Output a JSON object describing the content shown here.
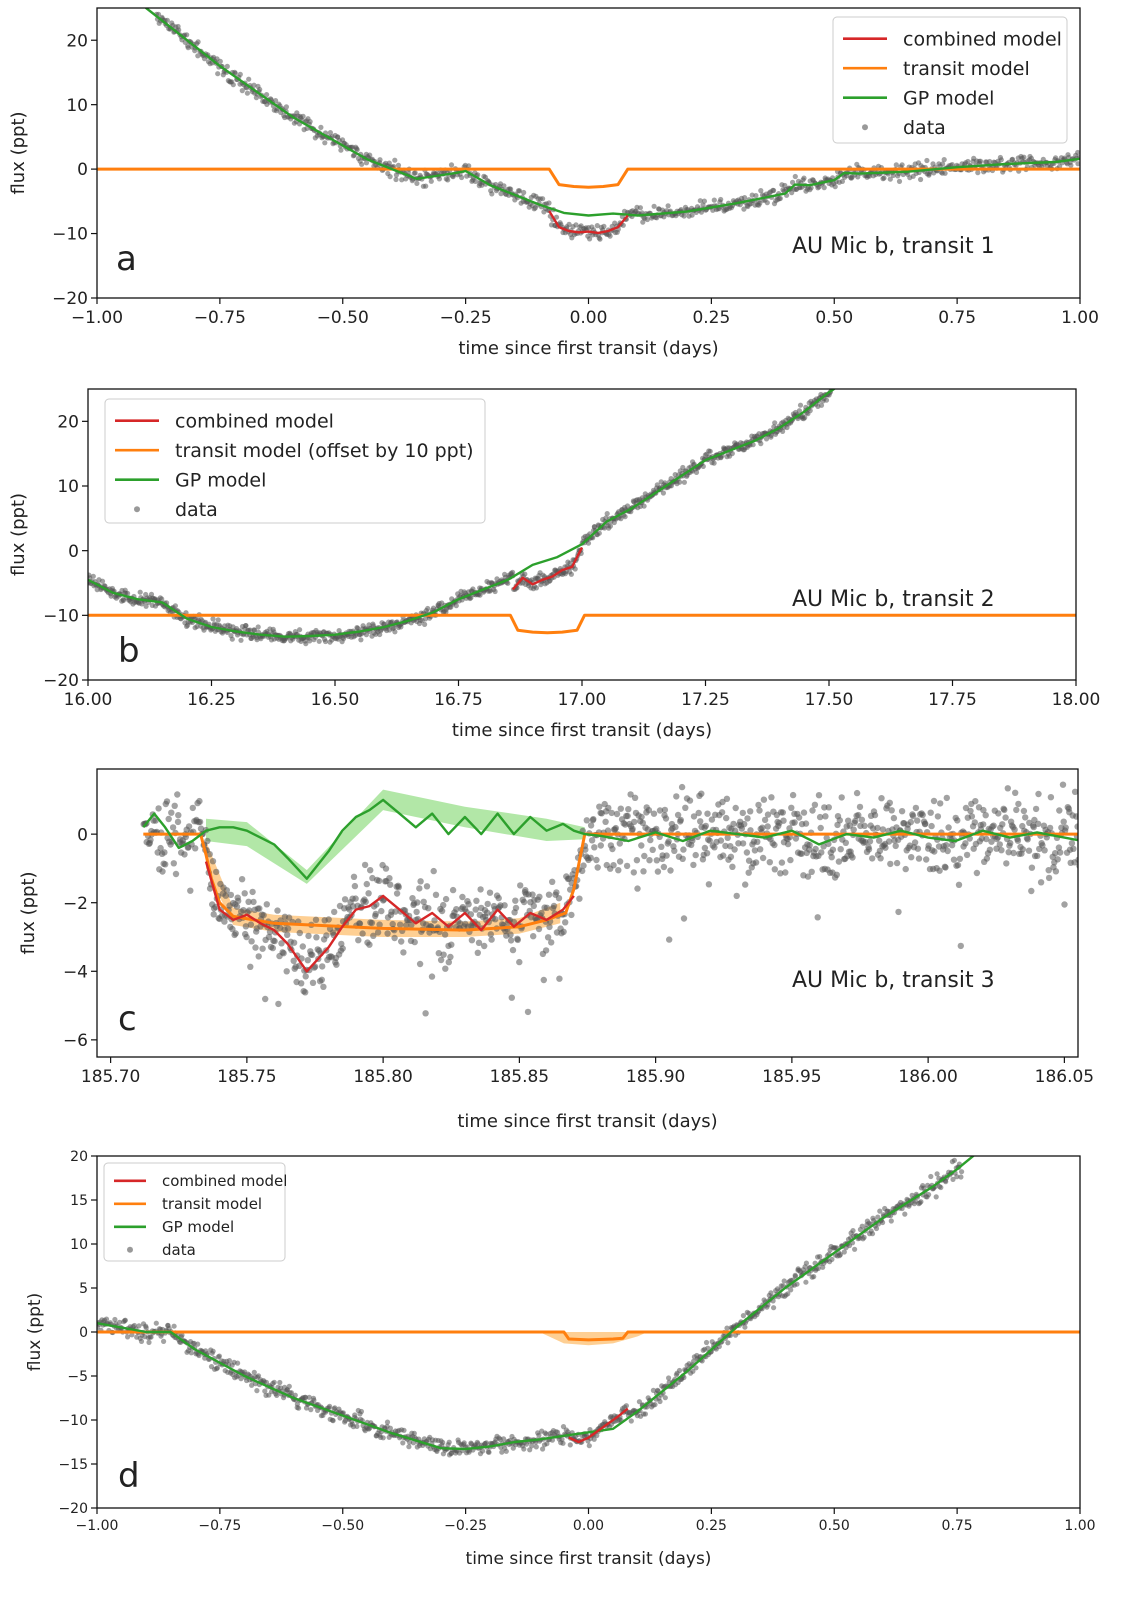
{
  "colors": {
    "combined": "#d62728",
    "transit": "#ff7f0e",
    "gp": "#2ca02c",
    "data": "#555555",
    "band_transit": "#fdbf6f",
    "band_gp": "#98df8a"
  },
  "chart_data": [
    {
      "panel_letter": "a",
      "type": "line",
      "annotation": "AU Mic b, transit 1",
      "xlabel": "time since first transit (days)",
      "ylabel": "flux (ppt)",
      "xlim": [
        -1.0,
        1.0
      ],
      "ylim": [
        -20,
        25
      ],
      "xticks": [
        -1.0,
        -0.75,
        -0.5,
        -0.25,
        0.0,
        0.25,
        0.5,
        0.75,
        1.0
      ],
      "xtick_labels": [
        "−1.00",
        "−0.75",
        "−0.50",
        "−0.25",
        "0.00",
        "0.25",
        "0.50",
        "0.75",
        "1.00"
      ],
      "yticks": [
        -20,
        -10,
        0,
        10,
        20
      ],
      "ytick_labels": [
        "−20",
        "−10",
        "0",
        "10",
        "20"
      ],
      "legend": {
        "placement": "top-right",
        "entries": [
          {
            "key": "combined",
            "label": "combined model"
          },
          {
            "key": "transit",
            "label": "transit model"
          },
          {
            "key": "gp",
            "label": "GP model"
          },
          {
            "key": "data",
            "label": "data"
          }
        ]
      },
      "series": [
        {
          "name": "combined model",
          "key": "combined",
          "x": [
            -0.08,
            -0.06,
            -0.04,
            -0.02,
            0.0,
            0.02,
            0.04,
            0.06,
            0.08
          ],
          "y": [
            -6.5,
            -9.0,
            -9.6,
            -9.8,
            -9.7,
            -9.9,
            -9.6,
            -9.0,
            -7.2
          ]
        },
        {
          "name": "transit model",
          "key": "transit",
          "x": [
            -1.0,
            -0.08,
            -0.06,
            -0.03,
            0.0,
            0.03,
            0.06,
            0.08,
            1.0
          ],
          "y": [
            0,
            0,
            -2.4,
            -2.7,
            -2.8,
            -2.7,
            -2.4,
            0,
            0
          ]
        },
        {
          "name": "GP model",
          "key": "gp",
          "x": [
            -1.0,
            -0.9,
            -0.75,
            -0.6,
            -0.45,
            -0.35,
            -0.27,
            -0.25,
            -0.2,
            -0.1,
            -0.05,
            0.0,
            0.05,
            0.1,
            0.2,
            0.3,
            0.4,
            0.42,
            0.45,
            0.5,
            0.52,
            0.55,
            0.65,
            0.75,
            0.85,
            0.95,
            1.0
          ],
          "y": [
            34,
            25,
            16,
            8,
            1.5,
            -1.5,
            -0.6,
            -0.3,
            -2.5,
            -5.5,
            -6.8,
            -7.2,
            -6.9,
            -7.2,
            -6.6,
            -5.3,
            -3.8,
            -2.4,
            -2.5,
            -1.7,
            -0.6,
            -0.7,
            -0.4,
            0.3,
            0.8,
            1.1,
            1.6
          ]
        }
      ],
      "points": {
        "seed": 11,
        "count": 900,
        "noise": 0.6,
        "x_range": [
          -0.88,
          1.0
        ],
        "follows": "combined_or_gp"
      }
    },
    {
      "panel_letter": "b",
      "type": "line",
      "annotation": "AU Mic b, transit 2",
      "xlabel": "time since first transit (days)",
      "ylabel": "flux (ppt)",
      "xlim": [
        16.0,
        18.0
      ],
      "ylim": [
        -20,
        25
      ],
      "xticks": [
        16.0,
        16.25,
        16.5,
        16.75,
        17.0,
        17.25,
        17.5,
        17.75,
        18.0
      ],
      "xtick_labels": [
        "16.00",
        "16.25",
        "16.50",
        "16.75",
        "17.00",
        "17.25",
        "17.50",
        "17.75",
        "18.00"
      ],
      "yticks": [
        -20,
        -10,
        0,
        10,
        20
      ],
      "ytick_labels": [
        "−20",
        "−10",
        "0",
        "10",
        "20"
      ],
      "legend": {
        "placement": "top-left",
        "entries": [
          {
            "key": "combined",
            "label": "combined model"
          },
          {
            "key": "transit",
            "label": "transit model (offset by 10 ppt)"
          },
          {
            "key": "gp",
            "label": "GP model"
          },
          {
            "key": "data",
            "label": "data"
          }
        ]
      },
      "series": [
        {
          "name": "combined model",
          "key": "combined",
          "x": [
            16.86,
            16.88,
            16.9,
            16.92,
            16.94,
            16.96,
            16.98,
            17.0
          ],
          "y": [
            -6.0,
            -4.2,
            -5.2,
            -4.5,
            -4.0,
            -3.0,
            -2.5,
            0.5
          ]
        },
        {
          "name": "transit model (offset by 10 ppt)",
          "key": "transit",
          "x": [
            16.0,
            16.855,
            16.87,
            16.9,
            16.93,
            16.96,
            16.99,
            17.005,
            18.0
          ],
          "y": [
            -10,
            -10,
            -12.3,
            -12.6,
            -12.7,
            -12.6,
            -12.3,
            -10,
            -10
          ]
        },
        {
          "name": "GP model",
          "key": "gp",
          "x": [
            16.0,
            16.05,
            16.1,
            16.15,
            16.2,
            16.25,
            16.3,
            16.35,
            16.4,
            16.45,
            16.5,
            16.55,
            16.6,
            16.65,
            16.7,
            16.75,
            16.8,
            16.85,
            16.9,
            16.95,
            17.0,
            17.05,
            17.1,
            17.15,
            17.2,
            17.25,
            17.3,
            17.35,
            17.4,
            17.45,
            17.5,
            17.52,
            17.6
          ],
          "y": [
            -4.5,
            -6.5,
            -7.5,
            -8.0,
            -10.5,
            -11.8,
            -12.5,
            -13.0,
            -13.3,
            -13.2,
            -13.0,
            -12.5,
            -11.8,
            -10.8,
            -9.5,
            -7.5,
            -6.0,
            -4.5,
            -2.2,
            -1.0,
            1.0,
            4.5,
            6.5,
            9.0,
            11.5,
            14.0,
            15.5,
            17.0,
            19.0,
            21.5,
            24.5,
            25.5,
            30.0
          ]
        }
      ],
      "points": {
        "seed": 23,
        "count": 950,
        "noise": 0.5,
        "x_range": [
          16.0,
          17.51
        ],
        "follows": "combined_or_gp"
      }
    },
    {
      "panel_letter": "c",
      "type": "line",
      "annotation": "AU Mic b, transit 3",
      "xlabel": "time since first transit (days)",
      "ylabel": "flux (ppt)",
      "xlim": [
        185.695,
        186.055
      ],
      "ylim": [
        -6.5,
        1.9
      ],
      "xticks": [
        185.7,
        185.75,
        185.8,
        185.85,
        185.9,
        185.95,
        186.0,
        186.05
      ],
      "xtick_labels": [
        "185.70",
        "185.75",
        "185.80",
        "185.85",
        "185.90",
        "185.95",
        "186.00",
        "186.05"
      ],
      "yticks": [
        -6,
        -4,
        -2,
        0
      ],
      "ytick_labels": [
        "−6",
        "−4",
        "−2",
        "0"
      ],
      "series": [
        {
          "name": "transit model",
          "key": "transit",
          "x": [
            185.712,
            185.733,
            185.735,
            185.737,
            185.74,
            185.745,
            185.76,
            185.8,
            185.83,
            185.85,
            185.86,
            185.867,
            185.87,
            185.872,
            185.874,
            186.063
          ],
          "y": [
            0,
            0,
            -0.6,
            -1.3,
            -2.0,
            -2.4,
            -2.6,
            -2.75,
            -2.8,
            -2.7,
            -2.5,
            -2.3,
            -1.6,
            -0.8,
            0,
            0
          ]
        },
        {
          "name": "GP model",
          "key": "gp",
          "x": [
            185.712,
            185.716,
            185.72,
            185.725,
            185.73,
            185.735,
            185.74,
            185.745,
            185.75,
            185.755,
            185.76,
            185.765,
            185.772,
            185.78,
            185.785,
            185.79,
            185.795,
            185.8,
            185.806,
            185.812,
            185.818,
            185.824,
            185.83,
            185.836,
            185.842,
            185.848,
            185.854,
            185.86,
            185.866,
            185.87,
            185.874,
            185.88,
            185.89,
            185.9,
            185.91,
            185.92,
            185.93,
            185.94,
            185.95,
            185.96,
            185.97,
            185.98,
            185.99,
            186.0,
            186.01,
            186.02,
            186.03,
            186.04,
            186.05,
            186.063
          ],
          "y": [
            0.2,
            0.6,
            0.2,
            -0.4,
            -0.2,
            0.1,
            0.2,
            0.2,
            0.1,
            -0.1,
            -0.3,
            -0.7,
            -1.3,
            -0.5,
            0.1,
            0.5,
            0.7,
            1.0,
            0.6,
            0.2,
            0.6,
            0.0,
            0.5,
            0.0,
            0.6,
            0.0,
            0.5,
            0.1,
            0.3,
            0.1,
            0.0,
            -0.05,
            -0.2,
            0.05,
            -0.2,
            0.1,
            0.0,
            -0.1,
            0.1,
            -0.3,
            0.0,
            -0.1,
            0.1,
            -0.1,
            -0.2,
            0.1,
            -0.1,
            0.05,
            -0.1,
            -0.3
          ]
        },
        {
          "name": "combined model",
          "key": "combined",
          "x": [
            185.735,
            185.74,
            185.745,
            185.75,
            185.755,
            185.76,
            185.765,
            185.772,
            185.78,
            185.785,
            185.79,
            185.795,
            185.8,
            185.806,
            185.812,
            185.818,
            185.824,
            185.83,
            185.836,
            185.842,
            185.848,
            185.854,
            185.86,
            185.866,
            185.87
          ],
          "y": [
            -0.8,
            -2.2,
            -2.5,
            -2.35,
            -2.6,
            -2.8,
            -3.2,
            -4.0,
            -3.3,
            -2.7,
            -2.2,
            -2.1,
            -1.8,
            -2.2,
            -2.6,
            -2.3,
            -2.7,
            -2.3,
            -2.8,
            -2.2,
            -2.7,
            -2.3,
            -2.5,
            -2.2,
            -1.8
          ]
        }
      ],
      "bands": [
        {
          "key": "transit",
          "x": [
            185.735,
            185.745,
            185.76,
            185.8,
            185.83,
            185.85,
            185.865
          ],
          "lo": [
            -1.0,
            -2.65,
            -2.85,
            -3.0,
            -3.0,
            -2.9,
            -2.6
          ],
          "hi": [
            -0.2,
            -2.15,
            -2.35,
            -2.5,
            -2.55,
            -2.45,
            -2.0
          ]
        },
        {
          "key": "gp",
          "x": [
            185.735,
            185.75,
            185.772,
            185.8,
            185.83,
            185.86,
            185.874
          ],
          "lo": [
            -0.2,
            -0.35,
            -1.45,
            0.7,
            0.2,
            -0.2,
            -0.15
          ],
          "hi": [
            0.45,
            0.35,
            -1.05,
            1.3,
            0.8,
            0.45,
            0.2
          ]
        }
      ],
      "points": {
        "seed": 37,
        "count": 1150,
        "noise": 0.55,
        "x_range": [
          185.712,
          186.063
        ],
        "follows": "combined_or_transit"
      }
    },
    {
      "panel_letter": "d",
      "type": "line",
      "xlabel": "time since first transit (days)",
      "ylabel": "flux (ppt)",
      "xlim": [
        -1.0,
        1.0
      ],
      "ylim": [
        -20,
        20
      ],
      "xticks": [
        -1.0,
        -0.75,
        -0.5,
        -0.25,
        0.0,
        0.25,
        0.5,
        0.75,
        1.0
      ],
      "xtick_labels": [
        "−1.00",
        "−0.75",
        "−0.50",
        "−0.25",
        "0.00",
        "0.25",
        "0.50",
        "0.75",
        "1.00"
      ],
      "yticks": [
        -20,
        -15,
        -10,
        -5,
        0,
        5,
        10,
        15,
        20
      ],
      "ytick_labels": [
        "−20",
        "−15",
        "−10",
        "−5",
        "0",
        "5",
        "10",
        "15",
        "20"
      ],
      "legend": {
        "placement": "top-left",
        "entries": [
          {
            "key": "combined",
            "label": "combined model"
          },
          {
            "key": "transit",
            "label": "transit model"
          },
          {
            "key": "gp",
            "label": "GP model"
          },
          {
            "key": "data",
            "label": "data"
          }
        ]
      },
      "series": [
        {
          "name": "combined model",
          "key": "combined",
          "x": [
            -0.04,
            -0.02,
            0.0,
            0.02,
            0.04,
            0.06,
            0.08
          ],
          "y": [
            -12.0,
            -12.5,
            -12.0,
            -11.2,
            -10.4,
            -9.6,
            -8.7
          ]
        },
        {
          "name": "transit model",
          "key": "transit",
          "x": [
            -1.0,
            -0.05,
            -0.04,
            0.0,
            0.05,
            0.07,
            0.08,
            1.0
          ],
          "y": [
            0,
            0,
            -0.8,
            -0.9,
            -0.8,
            -0.7,
            0,
            0
          ]
        },
        {
          "name": "GP model",
          "key": "gp",
          "x": [
            -1.0,
            -0.95,
            -0.9,
            -0.85,
            -0.8,
            -0.75,
            -0.7,
            -0.6,
            -0.5,
            -0.4,
            -0.3,
            -0.25,
            -0.2,
            -0.15,
            -0.1,
            -0.05,
            0.0,
            0.05,
            0.1,
            0.2,
            0.3,
            0.4,
            0.5,
            0.6,
            0.7,
            0.75,
            0.8
          ],
          "y": [
            1.0,
            0.5,
            0.0,
            0.0,
            -2.0,
            -3.5,
            -5.0,
            -7.5,
            -9.5,
            -11.5,
            -13.2,
            -13.3,
            -13.0,
            -12.5,
            -12.2,
            -11.8,
            -11.4,
            -11.0,
            -9.0,
            -4.5,
            0.5,
            5.0,
            9.0,
            13.0,
            16.5,
            18.5,
            20.8
          ]
        }
      ],
      "bands": [
        {
          "key": "transit",
          "x": [
            -0.1,
            -0.05,
            0.0,
            0.05,
            0.1,
            0.12
          ],
          "lo": [
            0,
            -1.3,
            -1.5,
            -1.3,
            -0.5,
            0
          ],
          "hi": [
            0,
            0,
            0,
            0,
            0,
            0
          ]
        }
      ],
      "points": {
        "seed": 59,
        "count": 950,
        "noise": 0.5,
        "x_range": [
          -1.0,
          0.76
        ],
        "follows": "combined_or_gp"
      }
    }
  ]
}
